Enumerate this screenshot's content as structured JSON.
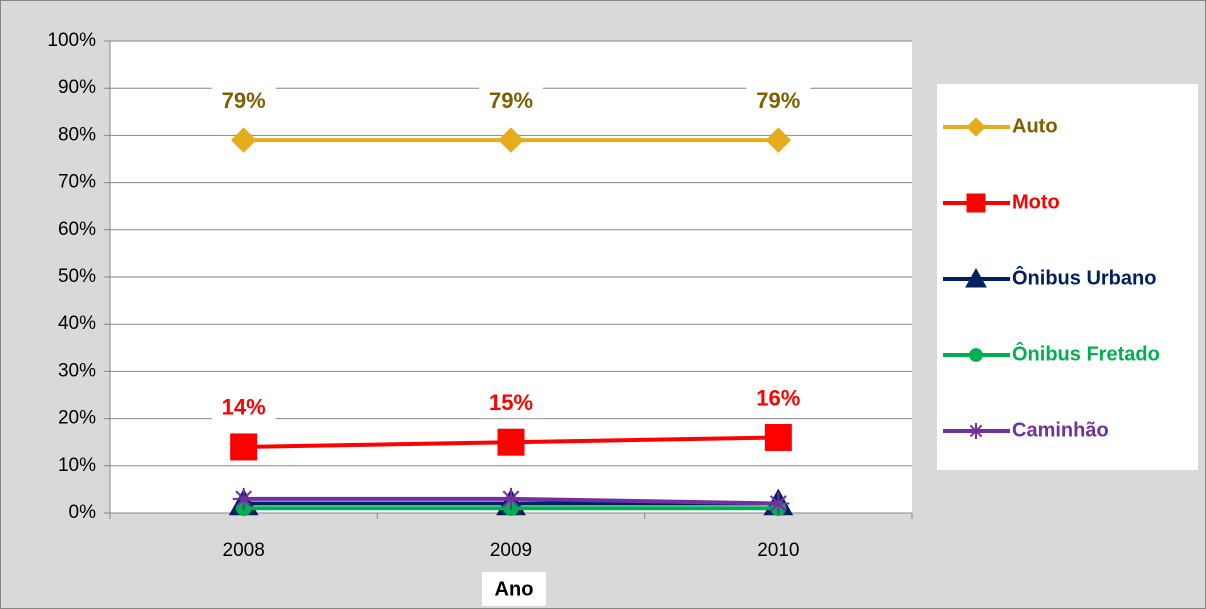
{
  "chart_data": {
    "type": "line",
    "x_label": "Ano",
    "categories": [
      "2008",
      "2009",
      "2010"
    ],
    "ylim": [
      0,
      100
    ],
    "yticks": [
      {
        "value": 0,
        "label": "0%"
      },
      {
        "value": 10,
        "label": "10%"
      },
      {
        "value": 20,
        "label": "20%"
      },
      {
        "value": 30,
        "label": "30%"
      },
      {
        "value": 40,
        "label": "40%"
      },
      {
        "value": 50,
        "label": "50%"
      },
      {
        "value": 60,
        "label": "60%"
      },
      {
        "value": 70,
        "label": "70%"
      },
      {
        "value": 80,
        "label": "80%"
      },
      {
        "value": 90,
        "label": "90%"
      },
      {
        "value": 100,
        "label": "100%"
      }
    ],
    "grid": true,
    "legend": "right",
    "series": [
      {
        "name": "Auto",
        "color": "#e6ac1c",
        "label_color": "#7f6000",
        "marker": "diamond",
        "values": [
          79,
          79,
          79
        ],
        "value_labels": [
          "79%",
          "79%",
          "79%"
        ]
      },
      {
        "name": "Moto",
        "color": "#ff0000",
        "label_color": "#ff0000",
        "marker": "square",
        "values": [
          14,
          15,
          16
        ],
        "value_labels": [
          "14%",
          "15%",
          "16%"
        ]
      },
      {
        "name": "Ônibus Urbano",
        "color": "#002060",
        "label_color": "#002060",
        "marker": "triangle",
        "values": [
          2,
          2,
          2
        ]
      },
      {
        "name": "Ônibus Fretado",
        "color": "#00b050",
        "label_color": "#00b050",
        "marker": "circle",
        "values": [
          1,
          1,
          1
        ]
      },
      {
        "name": "Caminhão",
        "color": "#7030a0",
        "label_color": "#7030a0",
        "marker": "star",
        "values": [
          3,
          3,
          2
        ]
      }
    ]
  }
}
